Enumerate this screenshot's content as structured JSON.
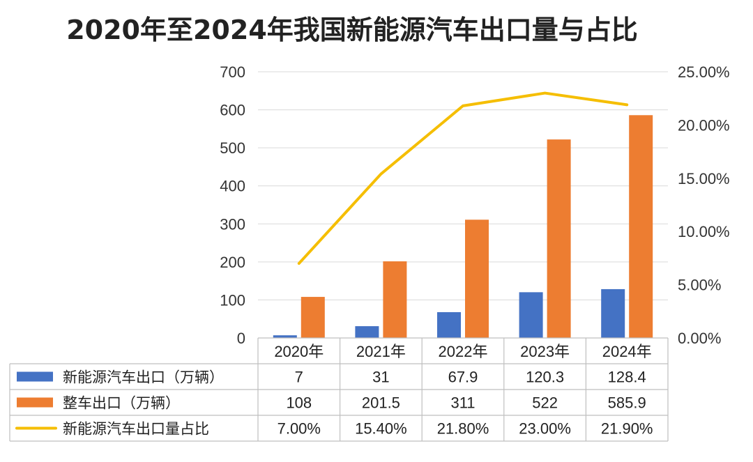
{
  "chart_data": {
    "type": "bar",
    "title": "2020年至2024年我国新能源汽车出口量与占比",
    "categories": [
      "2020年",
      "2021年",
      "2022年",
      "2023年",
      "2024年"
    ],
    "series": [
      {
        "name": "新能源汽车出口（万辆）",
        "type": "bar",
        "axis": "left",
        "color": "#4472C4",
        "values": [
          7,
          31,
          67.9,
          120.3,
          128.4
        ],
        "labels": [
          "7",
          "31",
          "67.9",
          "120.3",
          "128.4"
        ]
      },
      {
        "name": "整车出口（万辆）",
        "type": "bar",
        "axis": "left",
        "color": "#ED7D31",
        "values": [
          108,
          201.5,
          311,
          522,
          585.9
        ],
        "labels": [
          "108",
          "201.5",
          "311",
          "522",
          "585.9"
        ]
      },
      {
        "name": "新能源汽车出口量占比",
        "type": "line",
        "axis": "right",
        "color": "#F5BE00",
        "values": [
          7.0,
          15.4,
          21.8,
          23.0,
          21.9
        ],
        "labels": [
          "7.00%",
          "15.40%",
          "21.80%",
          "23.00%",
          "21.90%"
        ]
      }
    ],
    "y_left": {
      "min": 0,
      "max": 700,
      "ticks": [
        "0",
        "100",
        "200",
        "300",
        "400",
        "500",
        "600",
        "700"
      ]
    },
    "y_right": {
      "min": 0,
      "max": 25,
      "ticks": [
        "0.00%",
        "5.00%",
        "10.00%",
        "15.00%",
        "20.00%",
        "25.00%"
      ]
    },
    "grid": true,
    "legend": "data-table"
  }
}
